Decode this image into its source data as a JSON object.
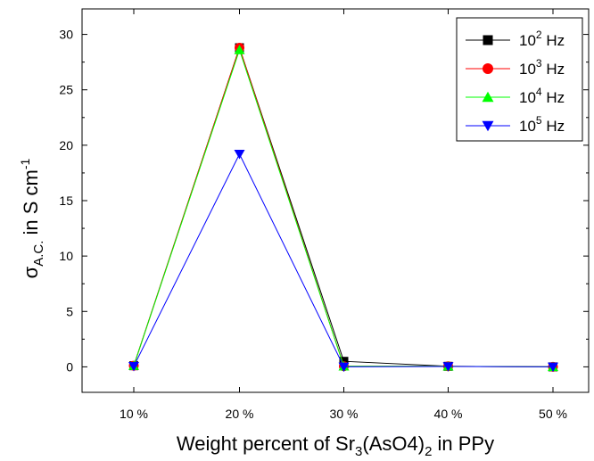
{
  "chart_data": {
    "type": "line",
    "categories": [
      "10 %",
      "20 %",
      "30 %",
      "40 %",
      "50 %"
    ],
    "xlabel": {
      "prefix": "Weight percent of Sr",
      "sub1": "3",
      "middle": "(AsO4)",
      "sub2": "2",
      "suffix": " in PPy"
    },
    "ylabel": {
      "prefix": "σ",
      "sub": "A.C.",
      "middle": " in S cm",
      "sup": "-1"
    },
    "ylim": [
      -2.3,
      32.3
    ],
    "yticks": [
      0,
      5,
      10,
      15,
      20,
      25,
      30
    ],
    "grid": false,
    "legend_position": "top-right",
    "series": [
      {
        "name": {
          "base": "10",
          "sup": "2",
          "unit": " Hz"
        },
        "color": "#000000",
        "marker": "square",
        "values": [
          0.1,
          28.8,
          0.5,
          0.05,
          0.0
        ]
      },
      {
        "name": {
          "base": "10",
          "sup": "3",
          "unit": " Hz"
        },
        "color": "#ff0000",
        "marker": "circle",
        "values": [
          0.1,
          28.8,
          0.05,
          0.05,
          0.0
        ]
      },
      {
        "name": {
          "base": "10",
          "sup": "4",
          "unit": " Hz"
        },
        "color": "#00ff00",
        "marker": "triangle-up",
        "values": [
          0.1,
          28.6,
          0.05,
          0.05,
          0.0
        ]
      },
      {
        "name": {
          "base": "10",
          "sup": "5",
          "unit": " Hz"
        },
        "color": "#0000ff",
        "marker": "triangle-down",
        "values": [
          0.05,
          19.2,
          0.0,
          0.03,
          0.0
        ]
      }
    ]
  }
}
